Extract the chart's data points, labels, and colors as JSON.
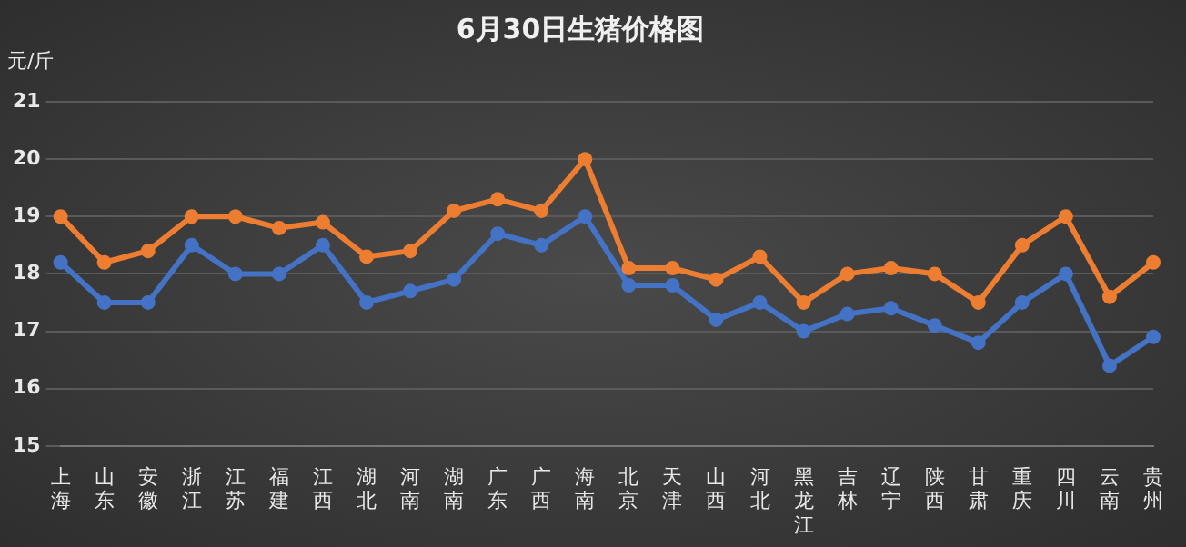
{
  "chart_data": {
    "type": "line",
    "title": "6月30日生猪价格图",
    "ylabel": "元/斤",
    "categories": [
      "上海",
      "山东",
      "安徽",
      "浙江",
      "江苏",
      "福建",
      "江西",
      "湖北",
      "河南",
      "湖南",
      "广东",
      "广西",
      "海南",
      "北京",
      "天津",
      "山西",
      "河北",
      "黑龙江",
      "吉林",
      "辽宁",
      "陕西",
      "甘肃",
      "重庆",
      "四川",
      "云南",
      "贵州"
    ],
    "series": [
      {
        "color": "#ed7d31",
        "values": [
          19.0,
          18.2,
          18.4,
          19.0,
          19.0,
          18.8,
          18.9,
          18.3,
          18.4,
          19.1,
          19.3,
          19.1,
          20.0,
          18.1,
          18.1,
          17.9,
          18.3,
          17.5,
          18.0,
          18.1,
          18.0,
          17.5,
          18.5,
          19.0,
          17.6,
          18.2
        ]
      },
      {
        "color": "#4472c4",
        "values": [
          18.2,
          17.5,
          17.5,
          18.5,
          18.0,
          18.0,
          18.5,
          17.5,
          17.7,
          17.9,
          18.7,
          18.5,
          19.0,
          17.8,
          17.8,
          17.2,
          17.5,
          17.0,
          17.3,
          17.4,
          17.1,
          16.8,
          17.5,
          18.0,
          16.4,
          16.9
        ]
      }
    ],
    "ylim": [
      15,
      21
    ],
    "yticks": [
      15,
      16,
      17,
      18,
      19,
      20,
      21
    ],
    "grid": "y",
    "marker": "circle",
    "line_style": "solid",
    "legend": false
  }
}
